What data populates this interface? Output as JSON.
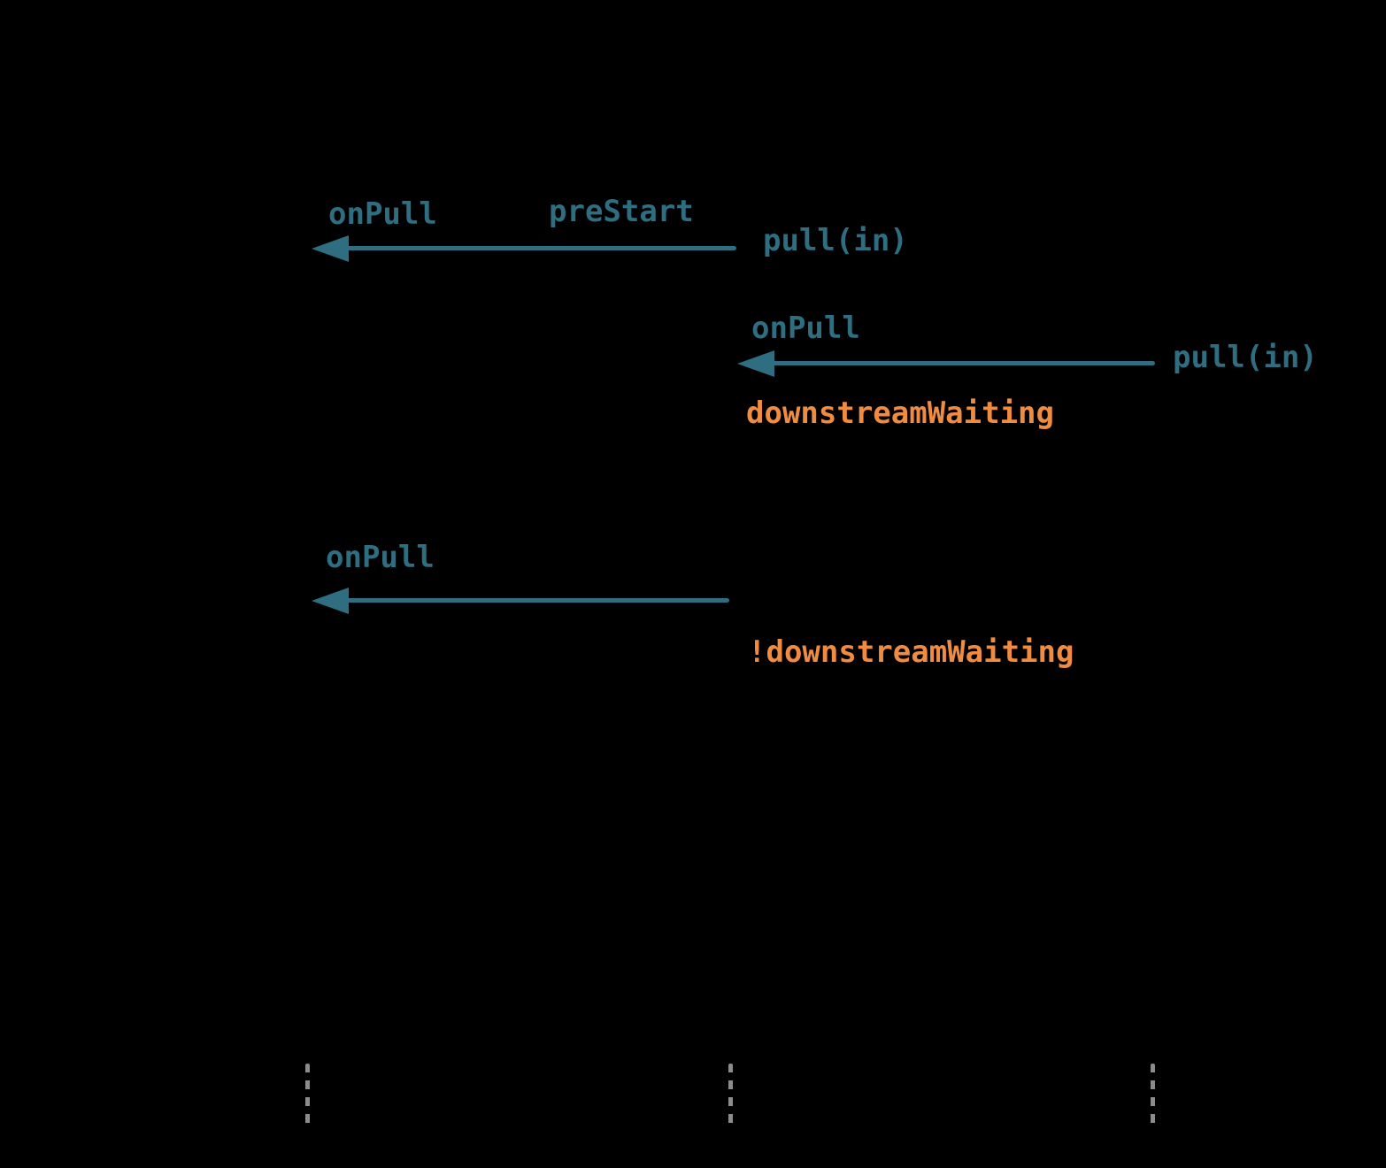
{
  "colors": {
    "background": "#000000",
    "event_teal": "#2e6e80",
    "state_orange": "#ef8c3f",
    "lifeline_gray": "#8c8c8c"
  },
  "messages": [
    {
      "event": "onPull",
      "origin_callback": "preStart",
      "call": "pull(in)"
    },
    {
      "event": "onPull",
      "call": "pull(in)",
      "state": "downstreamWaiting"
    },
    {
      "event": "onPull",
      "state": "!downstreamWaiting"
    }
  ]
}
